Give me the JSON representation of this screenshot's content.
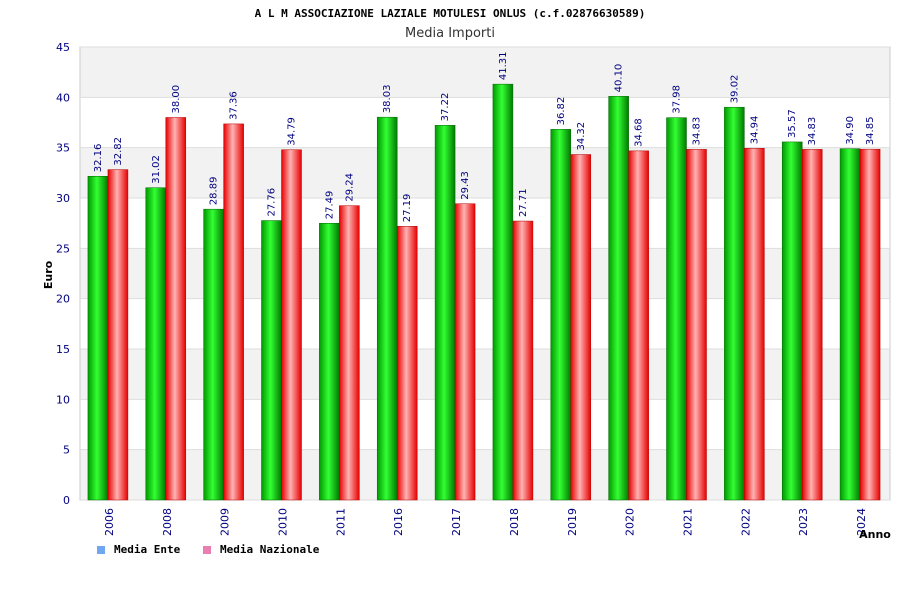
{
  "chart_data": {
    "type": "bar",
    "title": "A L M ASSOCIAZIONE LAZIALE MOTULESI ONLUS (c.f.02876630589)",
    "subtitle": "Media Importi",
    "xlabel": "Anno",
    "ylabel": "Euro",
    "ylim": [
      0,
      45
    ],
    "yticks": [
      0,
      5,
      10,
      15,
      20,
      25,
      30,
      35,
      40,
      45
    ],
    "categories": [
      "2006",
      "2008",
      "2009",
      "2010",
      "2011",
      "2016",
      "2017",
      "2018",
      "2019",
      "2020",
      "2021",
      "2022",
      "2023",
      "2024"
    ],
    "series": [
      {
        "name": "Media Ente",
        "values": [
          32.16,
          31.02,
          28.89,
          27.76,
          27.49,
          38.03,
          37.22,
          41.31,
          36.82,
          40.1,
          37.98,
          39.02,
          35.57,
          34.9
        ],
        "labels": [
          "32.16",
          "31.02",
          "28.89",
          "27.76",
          "27.49",
          "38.03",
          "37.22",
          "41.31",
          "36.82",
          "40.10",
          "37.98",
          "39.02",
          "35.57",
          "34.90"
        ]
      },
      {
        "name": "Media Nazionale",
        "values": [
          32.82,
          38.0,
          37.36,
          34.79,
          29.24,
          27.19,
          29.43,
          27.71,
          34.32,
          34.68,
          34.83,
          34.94,
          34.83,
          34.85
        ],
        "labels": [
          "32.82",
          "38.00",
          "37.36",
          "34.79",
          "29.24",
          "27.19",
          "29.43",
          "27.71",
          "34.32",
          "34.68",
          "34.83",
          "34.94",
          "34.83",
          "34.85"
        ]
      }
    ],
    "legend": {
      "placement": "bottom-left",
      "items": [
        {
          "label": "Media Ente",
          "swatch_color": "#6fa8f0"
        },
        {
          "label": "Media Nazionale",
          "swatch_color": "#e87fb0"
        }
      ]
    },
    "grid": true,
    "colors": {
      "ente_dark": "#008000",
      "ente_light": "#33ff33",
      "nazionale_dark": "#e60000",
      "nazionale_light": "#ffb3b3",
      "band": "#f2f2f2",
      "axis_text": "#000080"
    }
  }
}
